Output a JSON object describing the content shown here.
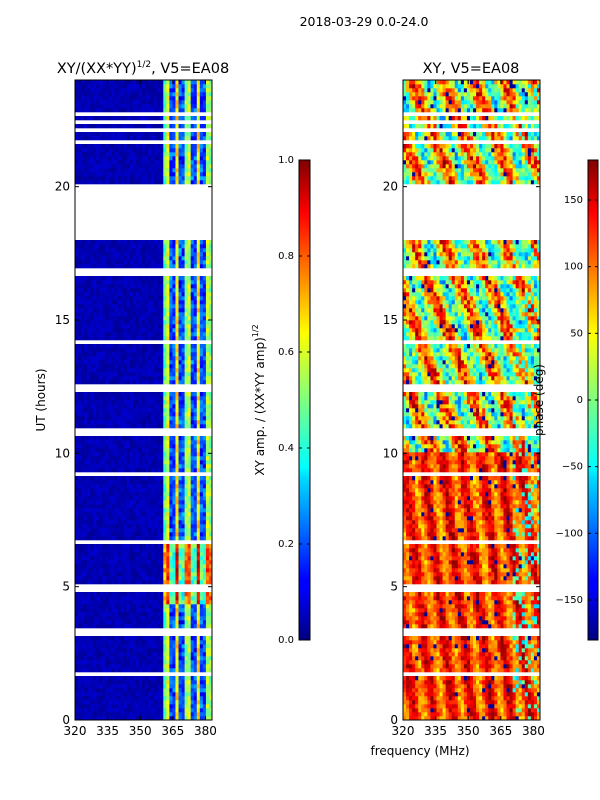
{
  "figure": {
    "suptitle": "2018-03-29 0.0-24.0",
    "xlabel": "frequency (MHz)"
  },
  "chart_data": [
    {
      "type": "heatmap",
      "title_main": "XY/(XX*YY)",
      "title_sup": "1/2",
      "title_rest": ", V5=EA08",
      "xlabel": "",
      "ylabel": "UT (hours)",
      "xlim": [
        320,
        383
      ],
      "ylim": [
        0,
        24
      ],
      "xticks": [
        320,
        335,
        350,
        365,
        380
      ],
      "yticks": [
        0,
        5,
        10,
        15,
        20
      ],
      "colorbar": {
        "label_main": "XY amp. / (XX*YY amp)",
        "label_sup": "1/2",
        "range": [
          0.0,
          1.0
        ],
        "ticks": [
          "0.0",
          "0.2",
          "0.4",
          "0.6",
          "0.8",
          "1.0"
        ],
        "colormap": "jet"
      },
      "notes": "Mostly near 0 (dark blue) across 320-360 MHz; bright striped channels (0.4-0.9) at ~361-380 MHz; strongest around UT 4.5-6.5 h; no data 18-20 h."
    },
    {
      "type": "heatmap",
      "title_main": "XY, V5=EA08",
      "title_sup": "",
      "title_rest": "",
      "xlabel": "",
      "ylabel": "",
      "xlim": [
        320,
        383
      ],
      "ylim": [
        0,
        24
      ],
      "xticks": [
        320,
        335,
        350,
        365,
        380
      ],
      "yticks": [
        0,
        5,
        10,
        15,
        20
      ],
      "colorbar": {
        "label_main": "phase (deg)",
        "label_sup": "",
        "range": [
          -180,
          180
        ],
        "ticks": [
          "−150",
          "−100",
          "−50",
          "0",
          "50",
          "100",
          "150"
        ],
        "colormap": "jet"
      },
      "notes": "Phase mostly ~100-150 deg (orange/red) below UT 10 h; mixed ~-50..100 deg above; no data 18-20 h."
    }
  ]
}
